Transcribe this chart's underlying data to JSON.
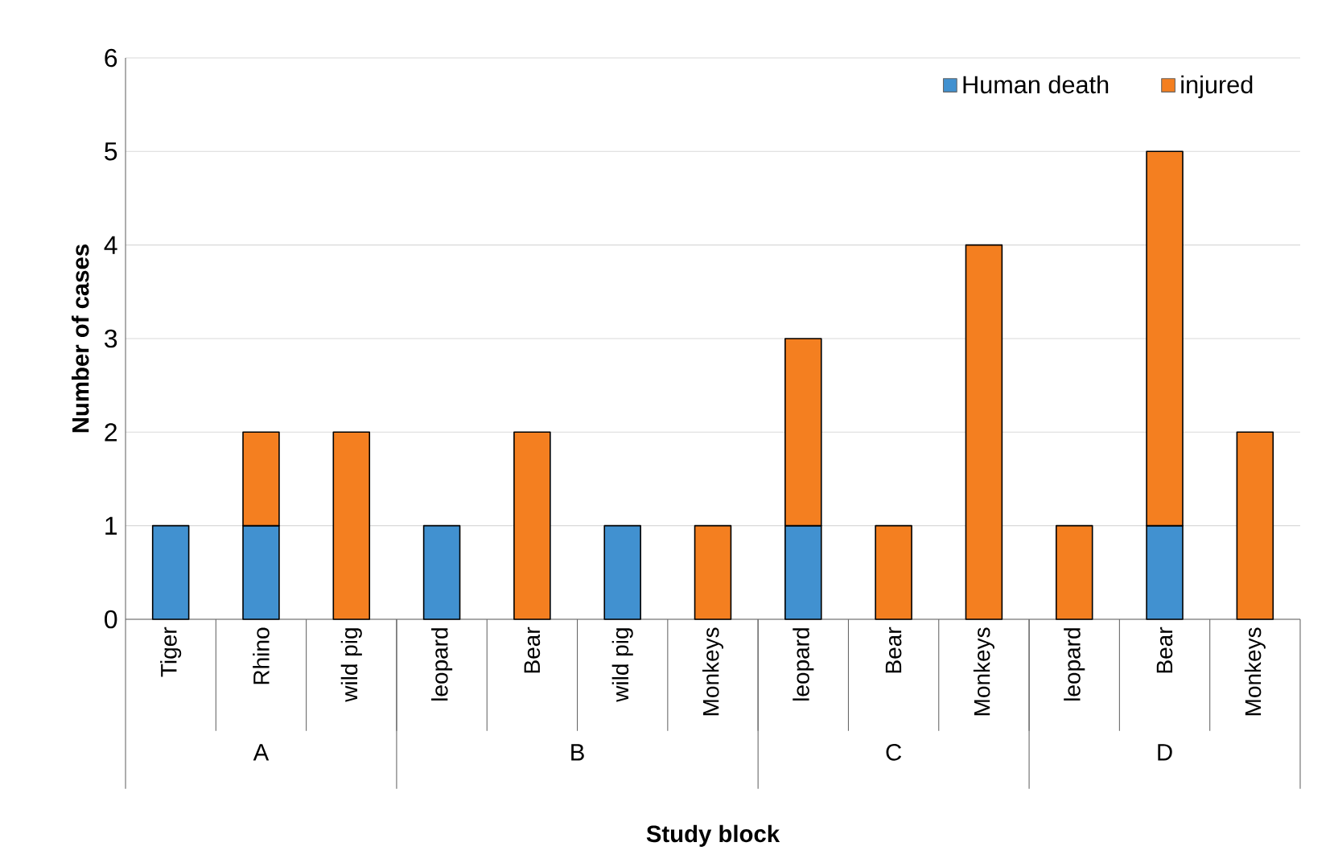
{
  "chart_data": {
    "type": "bar",
    "stacked": true,
    "xlabel": "Study block",
    "ylabel": "Number of cases",
    "categories": [
      "Tiger",
      "Rhino",
      "wild pig",
      "leopard",
      "Bear",
      "wild pig",
      "Monkeys",
      "leopard",
      "Bear",
      "Monkeys",
      "leopard",
      "Bear",
      "Monkeys"
    ],
    "series": [
      {
        "name": "Human death",
        "color": "#4191d0",
        "values": [
          1,
          1,
          null,
          1,
          null,
          1,
          null,
          1,
          null,
          null,
          null,
          1,
          null
        ]
      },
      {
        "name": "injured",
        "color": "#f47f20",
        "values": [
          null,
          1,
          2,
          null,
          2,
          null,
          1,
          2,
          1,
          4,
          1,
          4,
          2
        ]
      }
    ],
    "annotations": [
      "A",
      "B",
      "C",
      "D"
    ],
    "ylim": [
      0,
      6
    ],
    "yticks": [
      0,
      1,
      2,
      3,
      4,
      5,
      6
    ],
    "grid": "y",
    "legend": "top right"
  }
}
